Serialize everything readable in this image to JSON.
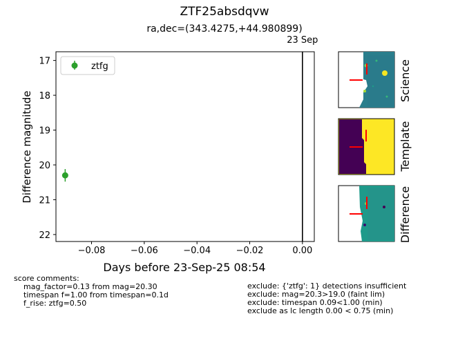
{
  "title": "ZTF25absdqvw",
  "subtitle": "ra,dec=(343.4275,+44.980899)",
  "chart_data": {
    "type": "scatter",
    "xlabel": "Days before 23-Sep-25 08:54",
    "ylabel": "Difference magnitude",
    "xlim": [
      -0.0935,
      0.0045
    ],
    "ylim": [
      22.2,
      16.75
    ],
    "y_inverted": true,
    "xticks": [
      -0.08,
      -0.06,
      -0.04,
      -0.02,
      0.0
    ],
    "xtick_labels": [
      "−0.08",
      "−0.06",
      "−0.04",
      "−0.02",
      "0.00"
    ],
    "yticks": [
      17,
      18,
      19,
      20,
      21,
      22
    ],
    "ytick_labels": [
      "17",
      "18",
      "19",
      "20",
      "21",
      "22"
    ],
    "legend_position": "top-left",
    "series": [
      {
        "name": "ztfg",
        "color": "#2ca02c",
        "points": [
          {
            "x": -0.09,
            "y": 20.3,
            "yerr": 0.18
          }
        ]
      }
    ],
    "vline": {
      "x": 0.0,
      "label": "23 Sep"
    }
  },
  "stamps": {
    "labels": [
      "Science",
      "Template",
      "Difference"
    ]
  },
  "score_comments": {
    "header": "score comments:",
    "lines": [
      "mag_factor=0.13 from mag=20.30",
      "timespan f=1.00 from timespan=0.1d",
      "f_rise: ztfg=0.50"
    ]
  },
  "exclude_lines": [
    "exclude: {'ztfg': 1} detections insufficient",
    "exclude: mag=20.3>19.0 (faint lim)",
    "exclude: timespan 0.09<1.00 (min)",
    "exclude as lc length 0.00 < 0.75 (min)"
  ]
}
